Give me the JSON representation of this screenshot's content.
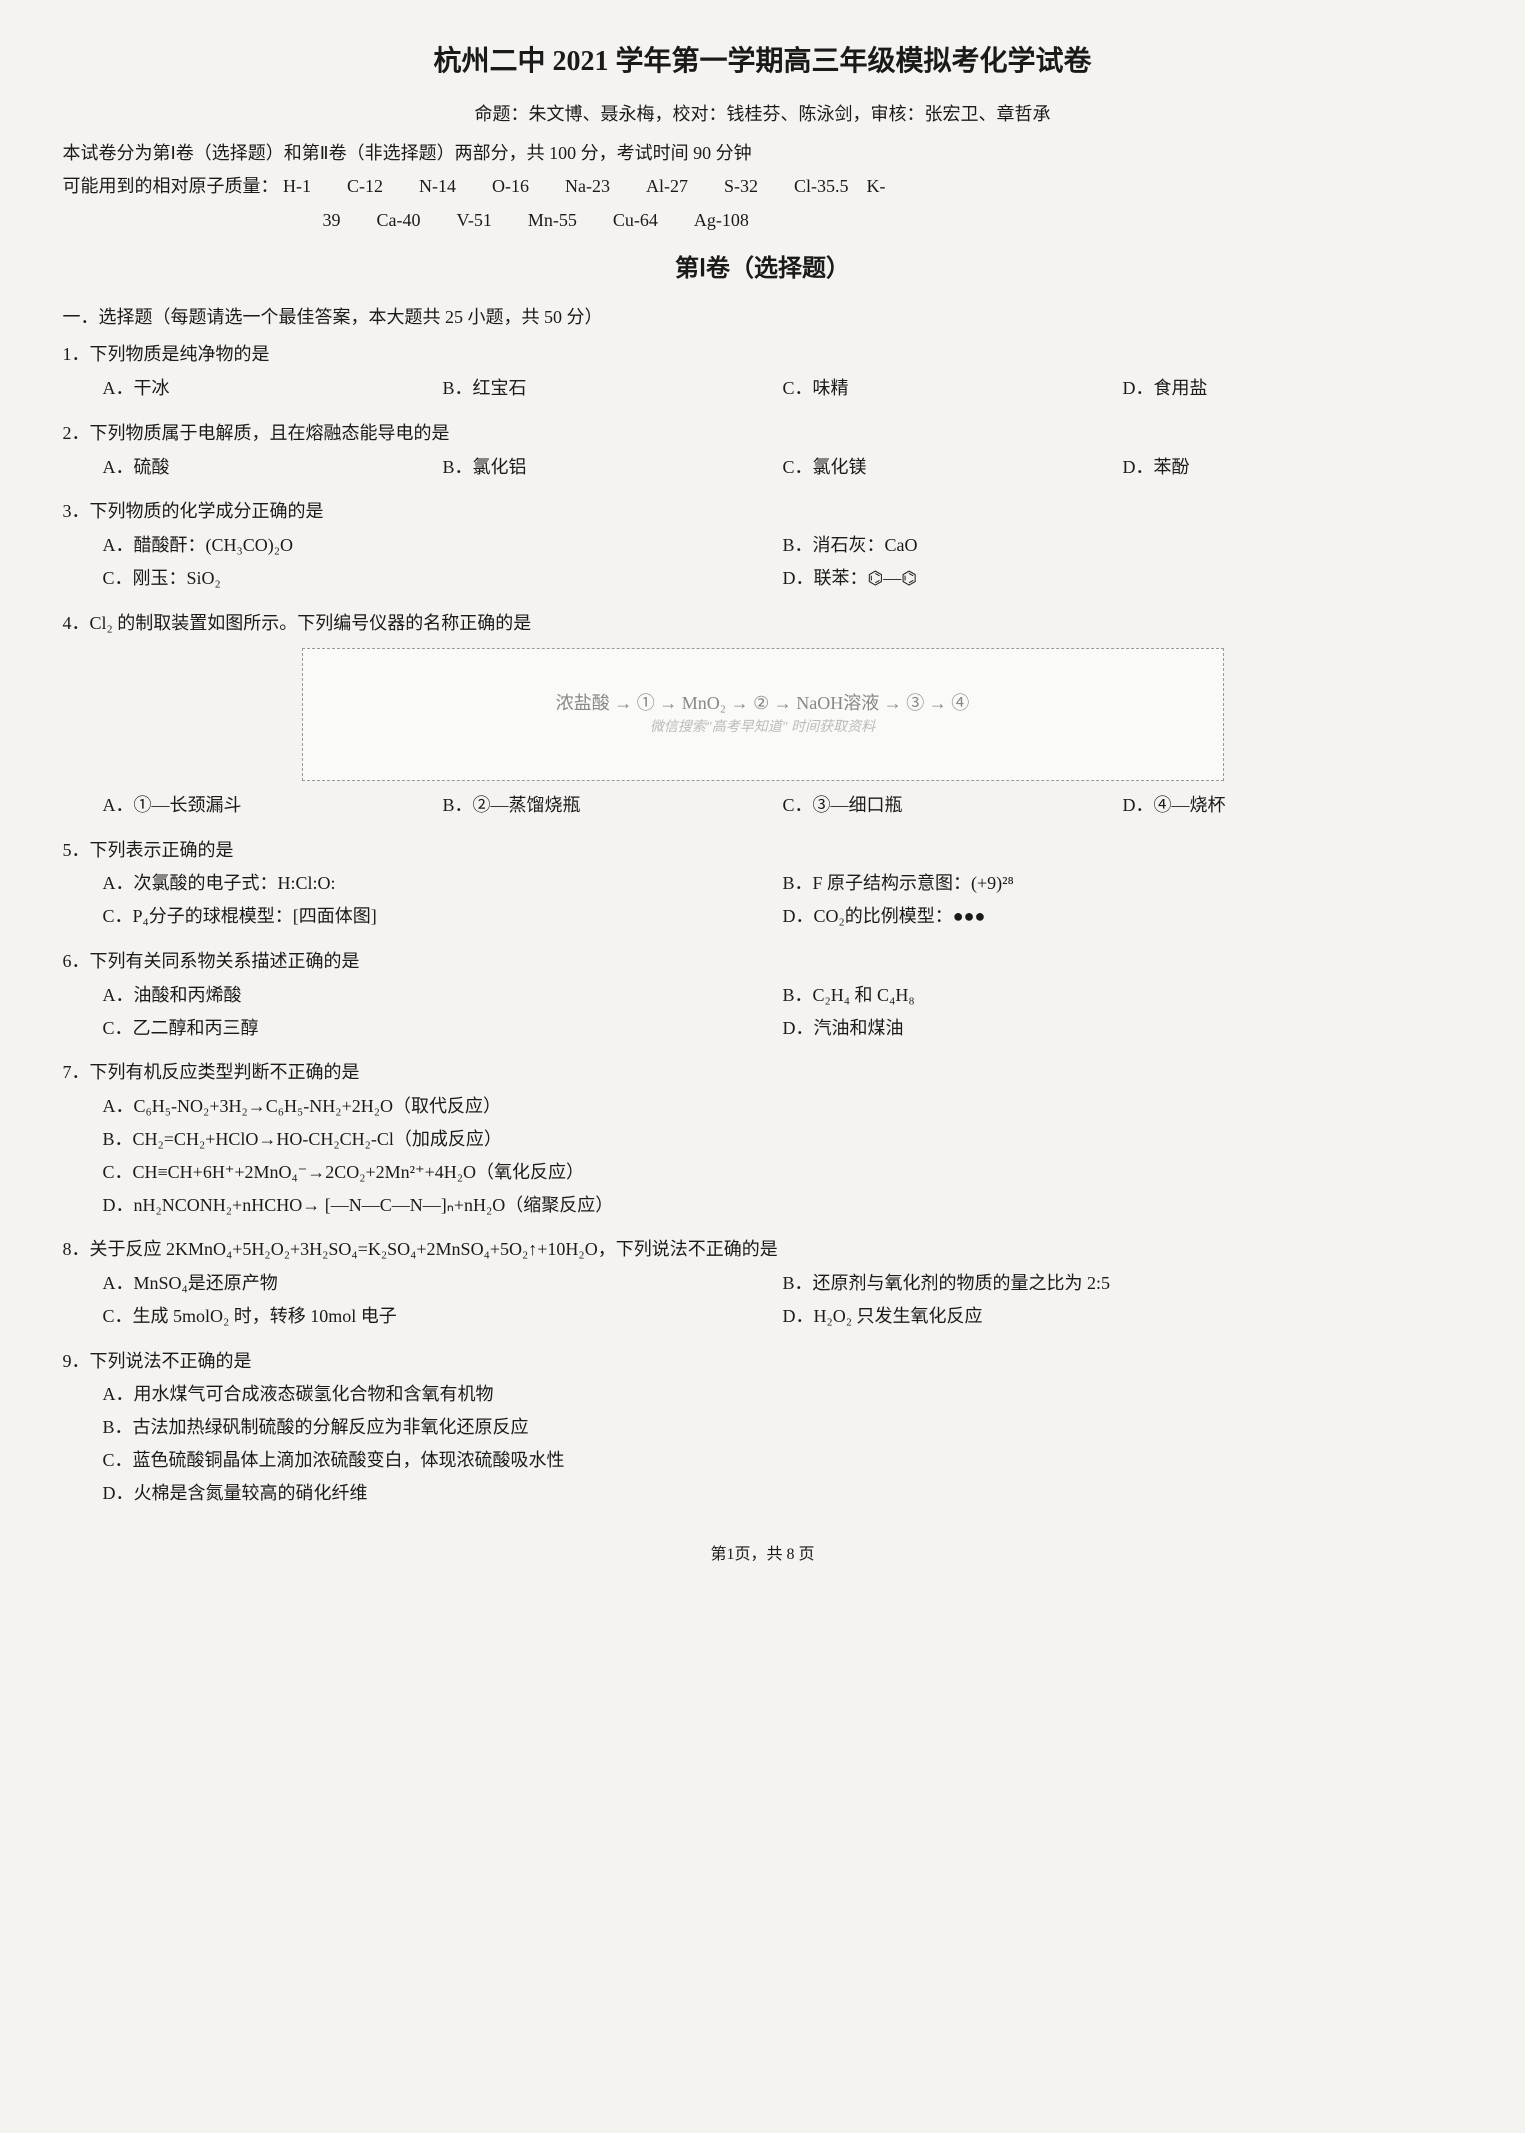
{
  "title": "杭州二中 2021 学年第一学期高三年级模拟考化学试卷",
  "credits": "命题：朱文博、聂永梅，校对：钱桂芬、陈泳剑，审核：张宏卫、章哲承",
  "instructions": "本试卷分为第Ⅰ卷（选择题）和第Ⅱ卷（非选择题）两部分，共 100 分，考试时间 90 分钟",
  "atomic_label": "可能用到的相对原子质量：",
  "atomic_line1": "H-1　　C-12　　N-14　　O-16　　Na-23　　Al-27　　S-32　　Cl-35.5　K-",
  "atomic_line2": "39　　Ca-40　　V-51　　Mn-55　　Cu-64　　Ag-108",
  "section1_title": "第Ⅰ卷（选择题）",
  "section1_desc": "一．选择题（每题请选一个最佳答案，本大题共 25 小题，共 50 分）",
  "questions": [
    {
      "num": "1",
      "text": "下列物质是纯净物的是",
      "layout": "4",
      "opts": [
        "A．干冰",
        "B．红宝石",
        "C．味精",
        "D．食用盐"
      ]
    },
    {
      "num": "2",
      "text": "下列物质属于电解质，且在熔融态能导电的是",
      "layout": "4",
      "opts": [
        "A．硫酸",
        "B．氯化铝",
        "C．氯化镁",
        "D．苯酚"
      ]
    },
    {
      "num": "3",
      "text": "下列物质的化学成分正确的是",
      "layout": "2",
      "opts": [
        "A．醋酸酐：(CH₃CO)₂O",
        "B．消石灰：CaO",
        "C．刚玉：SiO₂",
        "D．联苯：⌬—⌬"
      ]
    },
    {
      "num": "4",
      "text": "Cl₂ 的制取装置如图所示。下列编号仪器的名称正确的是",
      "diagram": "浓盐酸 → ① → MnO₂ → ② → NaOH溶液 → ③ → ④",
      "watermark": "微信搜索\"高考早知道\" 时间获取资料",
      "layout": "4",
      "opts": [
        "A．①—长颈漏斗",
        "B．②—蒸馏烧瓶",
        "C．③—细口瓶",
        "D．④—烧杯"
      ]
    },
    {
      "num": "5",
      "text": "下列表示正确的是",
      "layout": "2",
      "opts": [
        "A．次氯酸的电子式：H:Cl:O:",
        "B．F 原子结构示意图：(+9)²⁸",
        "C．P₄分子的球棍模型：[四面体图]",
        "D．CO₂的比例模型：●●●"
      ]
    },
    {
      "num": "6",
      "text": "下列有关同系物关系描述正确的是",
      "layout": "2",
      "opts": [
        "A．油酸和丙烯酸",
        "B．C₂H₄ 和 C₄H₈",
        "C．乙二醇和丙三醇",
        "D．汽油和煤油"
      ]
    },
    {
      "num": "7",
      "text": "下列有机反应类型判断不正确的是",
      "layout": "1",
      "opts": [
        "A．C₆H₅-NO₂+3H₂→C₆H₅-NH₂+2H₂O（取代反应）",
        "B．CH₂=CH₂+HClO→HO-CH₂CH₂-Cl（加成反应）",
        "C．CH≡CH+6H⁺+2MnO₄⁻→2CO₂+2Mn²⁺+4H₂O（氧化反应）",
        "D．nH₂NCONH₂+nHCHO→ [—N—C—N—]ₙ+nH₂O（缩聚反应）"
      ]
    },
    {
      "num": "8",
      "text": "关于反应 2KMnO₄+5H₂O₂+3H₂SO₄=K₂SO₄+2MnSO₄+5O₂↑+10H₂O，下列说法不正确的是",
      "layout": "2",
      "opts": [
        "A．MnSO₄是还原产物",
        "B．还原剂与氧化剂的物质的量之比为 2:5",
        "C．生成 5molO₂ 时，转移 10mol 电子",
        "D．H₂O₂ 只发生氧化反应"
      ]
    },
    {
      "num": "9",
      "text": "下列说法不正确的是",
      "layout": "1",
      "opts": [
        "A．用水煤气可合成液态碳氢化合物和含氧有机物",
        "B．古法加热绿矾制硫酸的分解反应为非氧化还原反应",
        "C．蓝色硫酸铜晶体上滴加浓硫酸变白，体现浓硫酸吸水性",
        "D．火棉是含氮量较高的硝化纤维"
      ]
    }
  ],
  "footer": "第1页，共 8 页"
}
